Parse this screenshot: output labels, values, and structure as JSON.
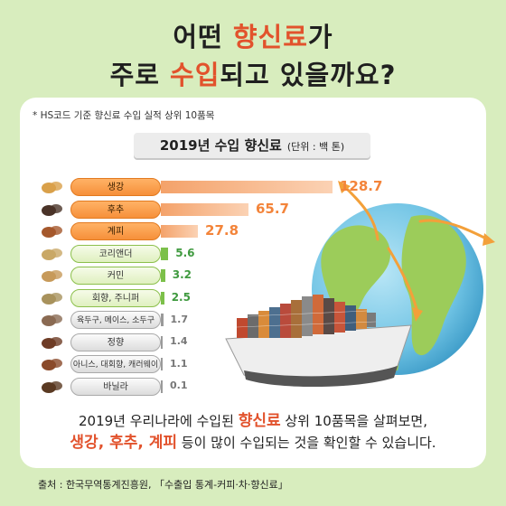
{
  "header": {
    "line1_pre": "어떤 ",
    "line1_hl": "향신료",
    "line1_post": "가",
    "line2_pre": "주로 ",
    "line2_hl": "수입",
    "line2_post": "되고 있을까요?"
  },
  "note": "* HS코드 기준 향신료 수입 실적 상위 10품목",
  "chart_data": {
    "type": "bar",
    "title": "2019년 수입 향신료",
    "unit_label": "(단위 : 백 톤)",
    "categories": [
      "생강",
      "후추",
      "계피",
      "코리앤더",
      "커민",
      "회향, 주니퍼",
      "육두구, 메이스, 소두구",
      "정향",
      "아니스, 대회향, 캐러웨이",
      "바닐라"
    ],
    "values": [
      128.7,
      65.7,
      27.8,
      5.6,
      3.2,
      2.5,
      1.7,
      1.4,
      1.1,
      0.1
    ],
    "value_labels": [
      "128.7",
      "65.7",
      "27.8",
      "5.6",
      "3.2",
      "2.5",
      "1.7",
      "1.4",
      "1.1",
      "0.1"
    ],
    "tiers": [
      "top",
      "top",
      "top",
      "mid",
      "mid",
      "mid",
      "low",
      "low",
      "low",
      "low"
    ],
    "tier_colors": {
      "top": "#f3843a",
      "mid": "#3f9a3f",
      "low": "#777777"
    },
    "icons": [
      "ginger-icon",
      "pepper-icon",
      "cinnamon-icon",
      "coriander-icon",
      "cumin-icon",
      "fennel-icon",
      "nutmeg-icon",
      "clove-icon",
      "star-anise-icon",
      "vanilla-icon"
    ]
  },
  "bottom": {
    "line1_pre": "2019년 우리나라에 수입된 ",
    "line1_hl": "향신료",
    "line1_post": " 상위 10품목을 살펴보면,",
    "line2_hl": "생강, 후추, 계피",
    "line2_post": " 등이 많이 수입되는 것을 확인할 수 있습니다."
  },
  "source": "출처 : 한국무역통계진흥원, 「수출입 통계-커피·차·향신료」"
}
